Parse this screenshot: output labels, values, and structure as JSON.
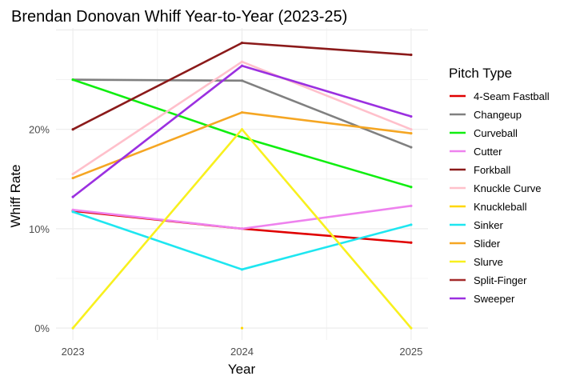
{
  "chart_data": {
    "type": "line",
    "title": "Brendan Donovan Whiff Year-to-Year (2023-25)",
    "xlabel": "Year",
    "ylabel": "Whiff Rate",
    "x": [
      2023,
      2024,
      2025
    ],
    "x_tick_labels": [
      "2023",
      "2024",
      "2025"
    ],
    "ylim": [
      -1.2,
      30.2
    ],
    "y_ticks": [
      0,
      10,
      20
    ],
    "y_tick_labels": [
      "0%",
      "10%",
      "20%"
    ],
    "grid": true,
    "legend_title": "Pitch Type",
    "legend_position": "right",
    "series": [
      {
        "name": "4-Seam Fastball",
        "color": "#e00000",
        "values": [
          11.8,
          10.0,
          8.6
        ]
      },
      {
        "name": "Changeup",
        "color": "#808080",
        "values": [
          25.0,
          24.9,
          18.2
        ]
      },
      {
        "name": "Curveball",
        "color": "#10ee10",
        "values": [
          25.0,
          19.2,
          14.2
        ]
      },
      {
        "name": "Cutter",
        "color": "#ee82ee",
        "values": [
          11.9,
          10.0,
          12.3
        ]
      },
      {
        "name": "Forkball",
        "color": "#8b1a1a",
        "values": [
          20.0,
          28.7,
          27.5
        ]
      },
      {
        "name": "Knuckle Curve",
        "color": "#ffc0cb",
        "values": [
          15.5,
          26.8,
          20.0
        ]
      },
      {
        "name": "Knuckleball",
        "color": "#ffd700",
        "values": [
          null,
          0.0,
          null
        ]
      },
      {
        "name": "Sinker",
        "color": "#1ee6f0",
        "values": [
          11.7,
          5.9,
          10.4
        ]
      },
      {
        "name": "Slider",
        "color": "#f5a623",
        "values": [
          15.1,
          21.7,
          19.6
        ]
      },
      {
        "name": "Slurve",
        "color": "#f8f01e",
        "values": [
          0.0,
          20.0,
          0.0
        ]
      },
      {
        "name": "Split-Finger",
        "color": "#a52a2a",
        "values": [
          null,
          null,
          null
        ]
      },
      {
        "name": "Sweeper",
        "color": "#9b30e0",
        "values": [
          13.2,
          26.4,
          21.3
        ]
      }
    ]
  }
}
